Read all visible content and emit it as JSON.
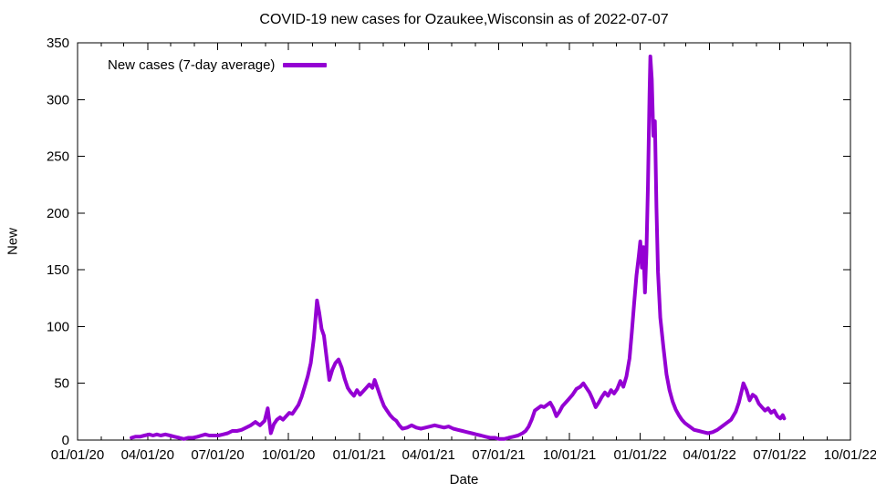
{
  "chart_data": {
    "type": "line",
    "title": "COVID-19 new cases for Ozaukee,Wisconsin as of 2022-07-07",
    "xlabel": "Date",
    "ylabel": "New",
    "x_range": [
      "2020-01-01",
      "2022-10-01"
    ],
    "y_range": [
      0,
      350
    ],
    "grid": false,
    "legend_position": "top-left",
    "y_ticks": [
      0,
      50,
      100,
      150,
      200,
      250,
      300,
      350
    ],
    "x_ticks": [
      {
        "date": "2020-01-01",
        "label": "01/01/20"
      },
      {
        "date": "2020-04-01",
        "label": "04/01/20"
      },
      {
        "date": "2020-07-01",
        "label": "07/01/20"
      },
      {
        "date": "2020-10-01",
        "label": "10/01/20"
      },
      {
        "date": "2021-01-01",
        "label": "01/01/21"
      },
      {
        "date": "2021-04-01",
        "label": "04/01/21"
      },
      {
        "date": "2021-07-01",
        "label": "07/01/21"
      },
      {
        "date": "2021-10-01",
        "label": "10/01/21"
      },
      {
        "date": "2022-01-01",
        "label": "01/01/22"
      },
      {
        "date": "2022-04-01",
        "label": "04/01/22"
      },
      {
        "date": "2022-07-01",
        "label": "07/01/22"
      },
      {
        "date": "2022-10-01",
        "label": "10/01/22"
      }
    ],
    "minor_tick_interval": "1 month",
    "series": [
      {
        "name": "New cases (7-day average)",
        "color": "#9400D3",
        "points": [
          [
            "2020-03-11",
            2
          ],
          [
            "2020-03-16",
            3
          ],
          [
            "2020-03-22",
            3
          ],
          [
            "2020-03-28",
            4
          ],
          [
            "2020-04-03",
            5
          ],
          [
            "2020-04-08",
            4
          ],
          [
            "2020-04-13",
            5
          ],
          [
            "2020-04-18",
            4
          ],
          [
            "2020-04-24",
            5
          ],
          [
            "2020-04-30",
            4
          ],
          [
            "2020-05-06",
            3
          ],
          [
            "2020-05-12",
            2
          ],
          [
            "2020-05-18",
            1
          ],
          [
            "2020-05-24",
            2
          ],
          [
            "2020-05-30",
            2
          ],
          [
            "2020-06-05",
            3
          ],
          [
            "2020-06-10",
            4
          ],
          [
            "2020-06-15",
            5
          ],
          [
            "2020-06-20",
            4
          ],
          [
            "2020-06-26",
            4
          ],
          [
            "2020-07-02",
            4
          ],
          [
            "2020-07-08",
            5
          ],
          [
            "2020-07-14",
            6
          ],
          [
            "2020-07-20",
            8
          ],
          [
            "2020-07-26",
            8
          ],
          [
            "2020-08-01",
            9
          ],
          [
            "2020-08-07",
            11
          ],
          [
            "2020-08-13",
            13
          ],
          [
            "2020-08-19",
            16
          ],
          [
            "2020-08-25",
            13
          ],
          [
            "2020-08-31",
            17
          ],
          [
            "2020-09-04",
            28
          ],
          [
            "2020-09-08",
            6
          ],
          [
            "2020-09-12",
            14
          ],
          [
            "2020-09-16",
            18
          ],
          [
            "2020-09-20",
            20
          ],
          [
            "2020-09-24",
            18
          ],
          [
            "2020-09-28",
            21
          ],
          [
            "2020-10-02",
            24
          ],
          [
            "2020-10-06",
            23
          ],
          [
            "2020-10-10",
            27
          ],
          [
            "2020-10-14",
            31
          ],
          [
            "2020-10-18",
            38
          ],
          [
            "2020-10-22",
            47
          ],
          [
            "2020-10-26",
            56
          ],
          [
            "2020-10-30",
            68
          ],
          [
            "2020-11-03",
            90
          ],
          [
            "2020-11-07",
            123
          ],
          [
            "2020-11-10",
            112
          ],
          [
            "2020-11-13",
            98
          ],
          [
            "2020-11-16",
            92
          ],
          [
            "2020-11-20",
            70
          ],
          [
            "2020-11-23",
            53
          ],
          [
            "2020-11-27",
            62
          ],
          [
            "2020-12-01",
            68
          ],
          [
            "2020-12-05",
            71
          ],
          [
            "2020-12-09",
            64
          ],
          [
            "2020-12-13",
            54
          ],
          [
            "2020-12-17",
            46
          ],
          [
            "2020-12-21",
            42
          ],
          [
            "2020-12-25",
            39
          ],
          [
            "2020-12-29",
            44
          ],
          [
            "2021-01-02",
            40
          ],
          [
            "2021-01-06",
            43
          ],
          [
            "2021-01-10",
            46
          ],
          [
            "2021-01-14",
            49
          ],
          [
            "2021-01-18",
            46
          ],
          [
            "2021-01-21",
            53
          ],
          [
            "2021-01-25",
            45
          ],
          [
            "2021-01-29",
            37
          ],
          [
            "2021-02-02",
            30
          ],
          [
            "2021-02-06",
            26
          ],
          [
            "2021-02-10",
            22
          ],
          [
            "2021-02-14",
            19
          ],
          [
            "2021-02-18",
            17
          ],
          [
            "2021-02-22",
            13
          ],
          [
            "2021-02-26",
            10
          ],
          [
            "2021-03-04",
            11
          ],
          [
            "2021-03-10",
            13
          ],
          [
            "2021-03-16",
            11
          ],
          [
            "2021-03-22",
            10
          ],
          [
            "2021-03-28",
            11
          ],
          [
            "2021-04-03",
            12
          ],
          [
            "2021-04-09",
            13
          ],
          [
            "2021-04-15",
            12
          ],
          [
            "2021-04-21",
            11
          ],
          [
            "2021-04-27",
            12
          ],
          [
            "2021-05-03",
            10
          ],
          [
            "2021-05-09",
            9
          ],
          [
            "2021-05-15",
            8
          ],
          [
            "2021-05-21",
            7
          ],
          [
            "2021-05-27",
            6
          ],
          [
            "2021-06-02",
            5
          ],
          [
            "2021-06-08",
            4
          ],
          [
            "2021-06-14",
            3
          ],
          [
            "2021-06-20",
            2
          ],
          [
            "2021-06-26",
            2
          ],
          [
            "2021-07-02",
            1
          ],
          [
            "2021-07-08",
            1
          ],
          [
            "2021-07-14",
            2
          ],
          [
            "2021-07-20",
            3
          ],
          [
            "2021-07-26",
            4
          ],
          [
            "2021-08-01",
            6
          ],
          [
            "2021-08-05",
            8
          ],
          [
            "2021-08-09",
            12
          ],
          [
            "2021-08-13",
            18
          ],
          [
            "2021-08-17",
            26
          ],
          [
            "2021-08-21",
            28
          ],
          [
            "2021-08-25",
            30
          ],
          [
            "2021-08-29",
            29
          ],
          [
            "2021-09-02",
            31
          ],
          [
            "2021-09-06",
            33
          ],
          [
            "2021-09-10",
            28
          ],
          [
            "2021-09-14",
            21
          ],
          [
            "2021-09-18",
            25
          ],
          [
            "2021-09-22",
            30
          ],
          [
            "2021-09-26",
            33
          ],
          [
            "2021-09-30",
            36
          ],
          [
            "2021-10-05",
            40
          ],
          [
            "2021-10-10",
            45
          ],
          [
            "2021-10-15",
            47
          ],
          [
            "2021-10-19",
            50
          ],
          [
            "2021-10-23",
            46
          ],
          [
            "2021-10-27",
            42
          ],
          [
            "2021-10-31",
            36
          ],
          [
            "2021-11-04",
            29
          ],
          [
            "2021-11-08",
            33
          ],
          [
            "2021-11-12",
            38
          ],
          [
            "2021-11-16",
            42
          ],
          [
            "2021-11-20",
            39
          ],
          [
            "2021-11-24",
            44
          ],
          [
            "2021-11-28",
            41
          ],
          [
            "2021-12-02",
            45
          ],
          [
            "2021-12-06",
            52
          ],
          [
            "2021-12-10",
            47
          ],
          [
            "2021-12-14",
            56
          ],
          [
            "2021-12-18",
            72
          ],
          [
            "2021-12-21",
            95
          ],
          [
            "2021-12-24",
            120
          ],
          [
            "2021-12-27",
            145
          ],
          [
            "2021-12-30",
            162
          ],
          [
            "2022-01-01",
            175
          ],
          [
            "2022-01-03",
            152
          ],
          [
            "2022-01-05",
            170
          ],
          [
            "2022-01-07",
            130
          ],
          [
            "2022-01-09",
            165
          ],
          [
            "2022-01-11",
            225
          ],
          [
            "2022-01-13",
            305
          ],
          [
            "2022-01-14",
            338
          ],
          [
            "2022-01-16",
            318
          ],
          [
            "2022-01-18",
            268
          ],
          [
            "2022-01-20",
            281
          ],
          [
            "2022-01-22",
            205
          ],
          [
            "2022-01-24",
            148
          ],
          [
            "2022-01-27",
            108
          ],
          [
            "2022-01-31",
            82
          ],
          [
            "2022-02-04",
            58
          ],
          [
            "2022-02-08",
            44
          ],
          [
            "2022-02-12",
            34
          ],
          [
            "2022-02-16",
            27
          ],
          [
            "2022-02-20",
            22
          ],
          [
            "2022-02-24",
            18
          ],
          [
            "2022-02-28",
            15
          ],
          [
            "2022-03-06",
            12
          ],
          [
            "2022-03-12",
            9
          ],
          [
            "2022-03-18",
            8
          ],
          [
            "2022-03-24",
            7
          ],
          [
            "2022-03-30",
            6
          ],
          [
            "2022-04-05",
            7
          ],
          [
            "2022-04-11",
            9
          ],
          [
            "2022-04-17",
            12
          ],
          [
            "2022-04-23",
            15
          ],
          [
            "2022-04-29",
            18
          ],
          [
            "2022-05-05",
            25
          ],
          [
            "2022-05-09",
            33
          ],
          [
            "2022-05-13",
            44
          ],
          [
            "2022-05-15",
            50
          ],
          [
            "2022-05-19",
            44
          ],
          [
            "2022-05-23",
            35
          ],
          [
            "2022-05-27",
            40
          ],
          [
            "2022-05-31",
            38
          ],
          [
            "2022-06-04",
            32
          ],
          [
            "2022-06-08",
            29
          ],
          [
            "2022-06-12",
            26
          ],
          [
            "2022-06-16",
            28
          ],
          [
            "2022-06-20",
            24
          ],
          [
            "2022-06-24",
            26
          ],
          [
            "2022-06-28",
            21
          ],
          [
            "2022-07-02",
            19
          ],
          [
            "2022-07-05",
            22
          ],
          [
            "2022-07-07",
            19
          ]
        ]
      }
    ]
  }
}
